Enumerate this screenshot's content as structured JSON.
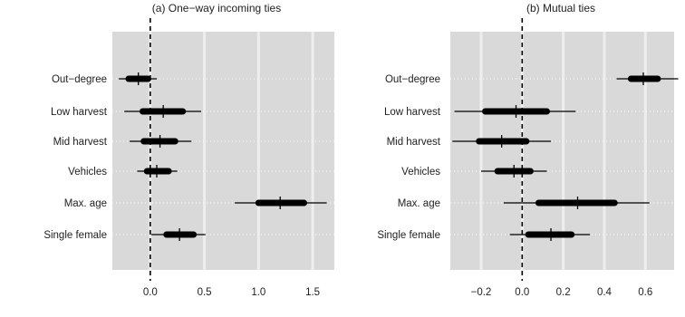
{
  "chart_data": [
    {
      "type": "coefficient_interval",
      "title": "(a) One−way incoming ties",
      "categories": [
        "Out−degree",
        "Low harvest",
        "Mid harvest",
        "Vehicles",
        "Max. age",
        "Single female"
      ],
      "estimates": [
        -0.11,
        0.12,
        0.09,
        0.06,
        1.2,
        0.27
      ],
      "inner_interval": [
        [
          -0.2,
          -0.02
        ],
        [
          -0.07,
          0.3
        ],
        [
          -0.06,
          0.23
        ],
        [
          -0.03,
          0.17
        ],
        [
          1.0,
          1.42
        ],
        [
          0.15,
          0.4
        ]
      ],
      "outer_interval": [
        [
          -0.29,
          0.06
        ],
        [
          -0.24,
          0.47
        ],
        [
          -0.19,
          0.38
        ],
        [
          -0.12,
          0.25
        ],
        [
          0.78,
          1.63
        ],
        [
          0.01,
          0.51
        ]
      ],
      "xlim": [
        -0.35,
        1.7
      ],
      "xticks": [
        0.0,
        0.5,
        1.0,
        1.5
      ],
      "xtick_labels": [
        "0.0",
        "0.5",
        "1.0",
        "1.5"
      ],
      "reference_line": 0,
      "grid": true,
      "background": "#d9d9d9"
    },
    {
      "type": "coefficient_interval",
      "title": "(b) Mutual ties",
      "categories": [
        "Out−degree",
        "Low harvest",
        "Mid harvest",
        "Vehicles",
        "Max. age",
        "Single female"
      ],
      "estimates": [
        0.59,
        -0.03,
        -0.1,
        -0.04,
        0.27,
        0.14
      ],
      "inner_interval": [
        [
          0.53,
          0.66
        ],
        [
          -0.18,
          0.12
        ],
        [
          -0.21,
          0.02
        ],
        [
          -0.12,
          0.04
        ],
        [
          0.08,
          0.45
        ],
        [
          0.03,
          0.24
        ]
      ],
      "outer_interval": [
        [
          0.46,
          0.76
        ],
        [
          -0.33,
          0.26
        ],
        [
          -0.34,
          0.14
        ],
        [
          -0.2,
          0.12
        ],
        [
          -0.09,
          0.62
        ],
        [
          -0.06,
          0.33
        ]
      ],
      "xlim": [
        -0.35,
        0.74
      ],
      "xticks": [
        -0.2,
        0.0,
        0.2,
        0.4,
        0.6
      ],
      "xtick_labels": [
        "−0.2",
        "0.0",
        "0.2",
        "0.4",
        "0.6"
      ],
      "reference_line": 0,
      "grid": true,
      "background": "#d9d9d9"
    }
  ]
}
